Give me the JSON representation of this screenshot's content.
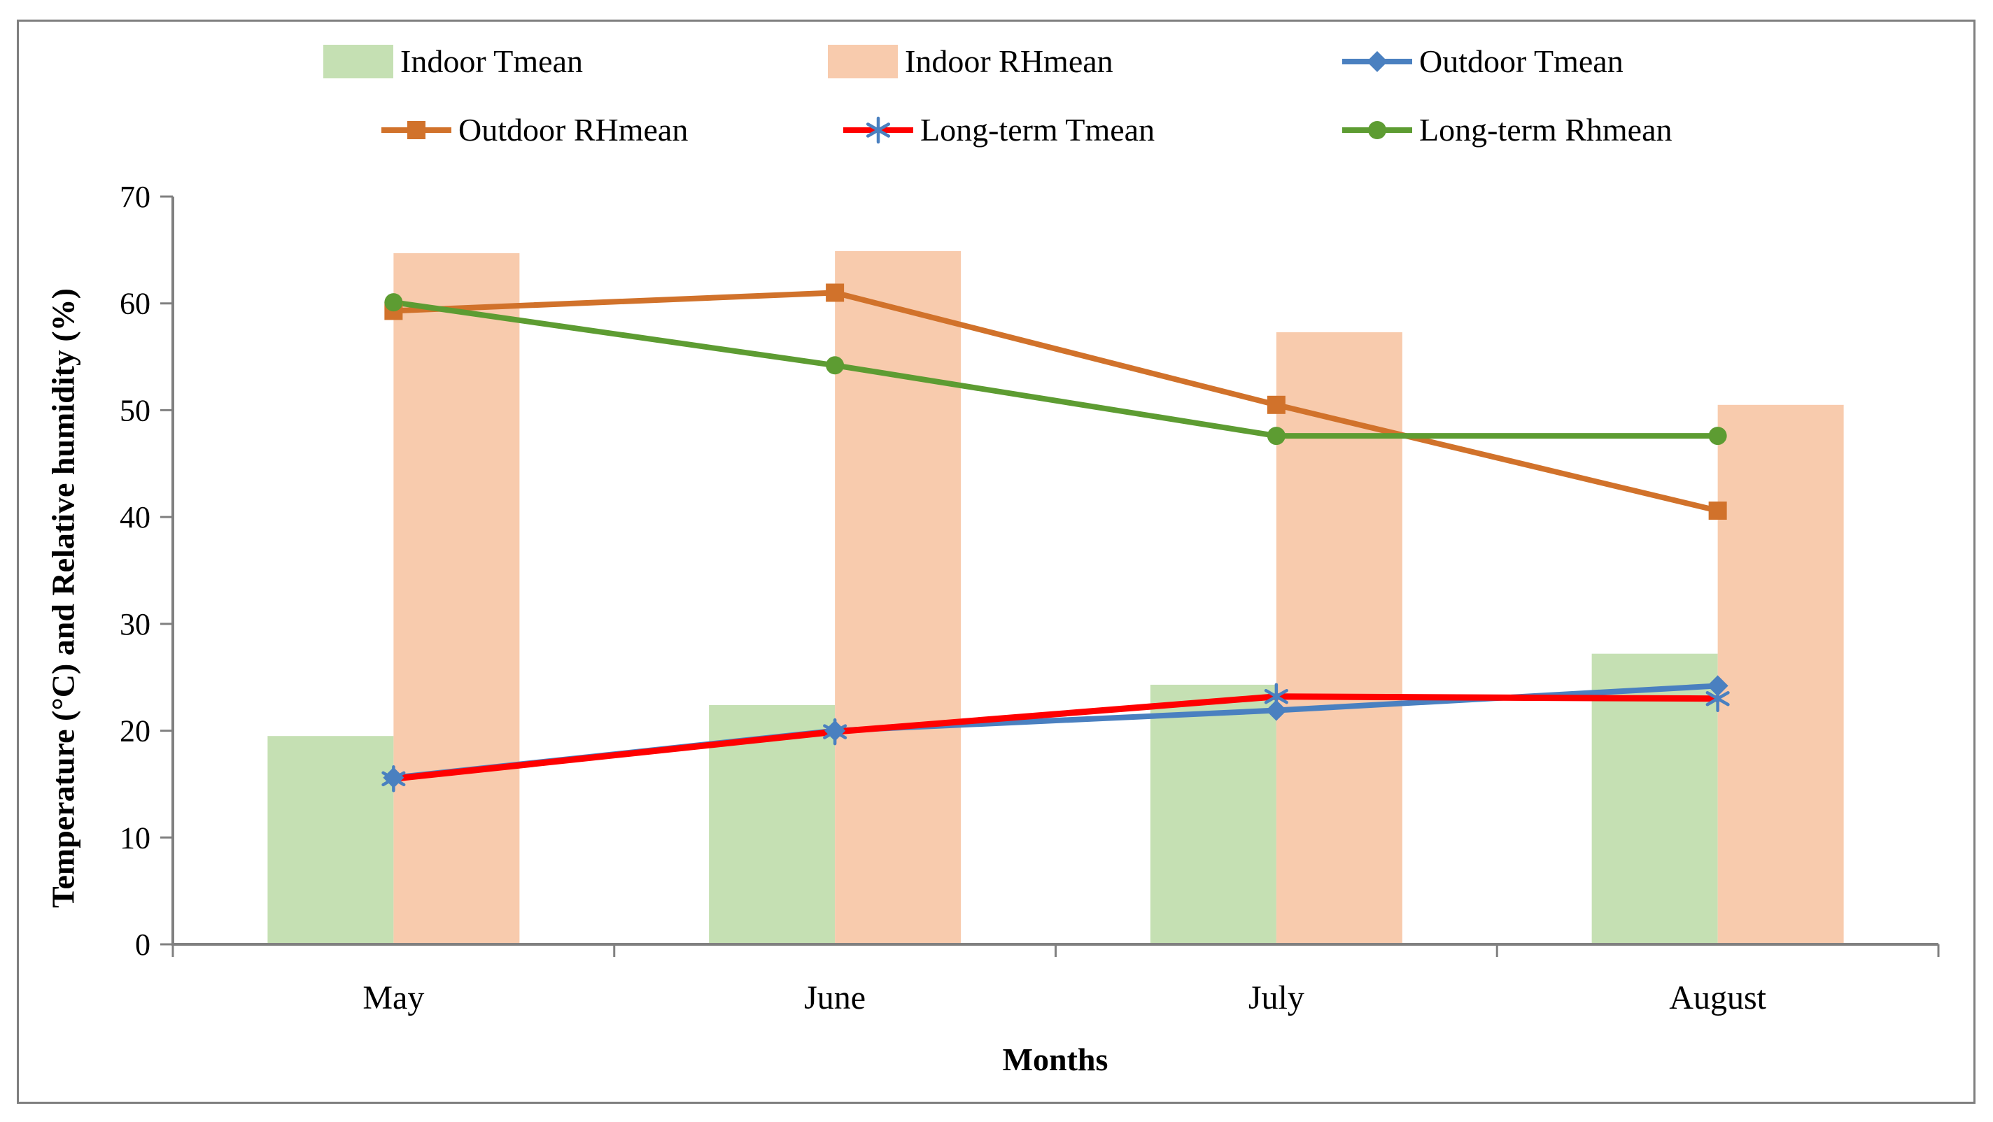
{
  "chart_data": {
    "type": "combo-bar-line",
    "categories": [
      "May",
      "June",
      "July",
      "August"
    ],
    "series": [
      {
        "name": "Indoor Tmean",
        "type": "bar",
        "color": "#c5e0b3",
        "values": [
          19.5,
          22.4,
          24.3,
          27.2
        ]
      },
      {
        "name": "Indoor RHmean",
        "type": "bar",
        "color": "#f8cbad",
        "values": [
          64.7,
          64.9,
          57.3,
          50.5
        ]
      },
      {
        "name": "Outdoor Tmean",
        "type": "line",
        "color": "#4a80c0",
        "marker": "diamond",
        "marker_color": "#4a80c0",
        "values": [
          15.6,
          20.0,
          21.9,
          24.2
        ]
      },
      {
        "name": "Outdoor RHmean",
        "type": "line",
        "color": "#d1722b",
        "marker": "square",
        "marker_color": "#d1722b",
        "values": [
          59.3,
          61.0,
          50.5,
          40.6
        ]
      },
      {
        "name": "Long-term Tmean",
        "type": "line",
        "color": "#ff0000",
        "marker": "asterisk",
        "marker_color": "#4a80c0",
        "values": [
          15.5,
          19.9,
          23.2,
          23.0
        ]
      },
      {
        "name": "Long-term Rhmean",
        "type": "line",
        "color": "#5d9c32",
        "marker": "circle",
        "marker_color": "#5d9c32",
        "values": [
          60.1,
          54.2,
          47.6,
          47.6
        ]
      }
    ],
    "title": "",
    "xlabel": "Months",
    "ylabel": "Temperature (°C) and Relative humidity (%)",
    "ylim": [
      0,
      70
    ],
    "yticks": [
      0,
      10,
      20,
      30,
      40,
      50,
      60,
      70
    ],
    "grid": false,
    "legend_position": "top"
  },
  "colors": {
    "axis": "#808080",
    "figure_border": "#7f7f7f",
    "text": "#000000"
  }
}
